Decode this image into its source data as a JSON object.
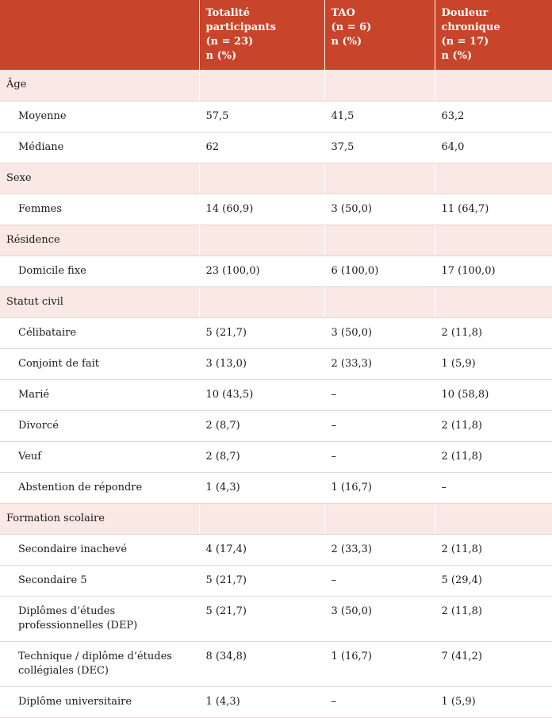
{
  "headers": [
    {
      "l1": "",
      "l2": "",
      "l3": ""
    },
    {
      "l1": "Totalité participants",
      "l2": "(n = 23)",
      "l3": "n (%)"
    },
    {
      "l1": "TAO",
      "l2": "(n = 6)",
      "l3": "n (%)"
    },
    {
      "l1": "Douleur chronique",
      "l2": "(n = 17)",
      "l3": "n (%)"
    }
  ],
  "sections": {
    "age": "Âge",
    "sexe": "Sexe",
    "residence": "Résidence",
    "statut": "Statut civil",
    "formation": "Formation scolaire"
  },
  "rows": {
    "moyenne": [
      "Moyenne",
      "57,5",
      "41,5",
      "63,2"
    ],
    "mediane": [
      "Médiane",
      "62",
      "37,5",
      "64,0"
    ],
    "femmes": [
      "Femmes",
      "14 (60,9)",
      "3 (50,0)",
      "11 (64,7)"
    ],
    "domicile": [
      "Domicile fixe",
      "23 (100,0)",
      "6 (100,0)",
      "17 (100,0)"
    ],
    "celibataire": [
      "Célibataire",
      "5 (21,7)",
      "3 (50,0)",
      "2 (11,8)"
    ],
    "conjoint": [
      "Conjoint de fait",
      "3 (13,0)",
      "2 (33,3)",
      "1 (5,9)"
    ],
    "marie": [
      "Marié",
      "10 (43,5)",
      "–",
      "10 (58,8)"
    ],
    "divorce": [
      "Divorcé",
      "2 (8,7)",
      "–",
      "2 (11,8)"
    ],
    "veuf": [
      "Veuf",
      "2 (8,7)",
      "–",
      "2 (11,8)"
    ],
    "abstention": [
      "Abstention de répondre",
      "1 (4,3)",
      "1 (16,7)",
      "–"
    ],
    "sec_inacheve": [
      "Secondaire inachevé",
      "4 (17,4)",
      "2 (33,3)",
      "2 (11,8)"
    ],
    "sec5": [
      "Secondaire 5",
      "5 (21,7)",
      "–",
      "5 (29,4)"
    ],
    "dep": [
      "Diplômes d’études professionnelles (DEP)",
      "5 (21,7)",
      "3 (50,0)",
      "2 (11,8)"
    ],
    "dec": [
      "Technique / diplôme d’études collégiales (DEC)",
      "8 (34,8)",
      "1 (16,7)",
      "7 (41,2)"
    ],
    "univ": [
      "Diplôme universitaire",
      "1 (4,3)",
      "–",
      "1 (5,9)"
    ]
  }
}
